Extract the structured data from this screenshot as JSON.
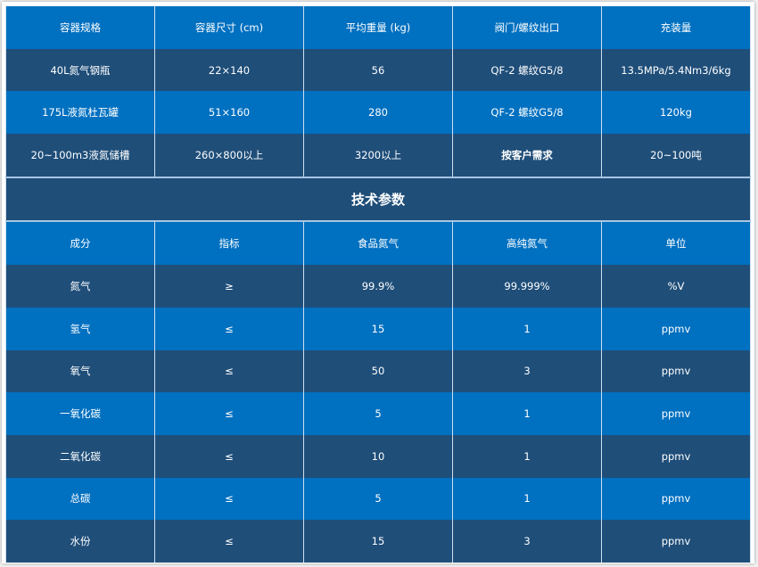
{
  "colors": {
    "row_blue": "#0070c0",
    "row_navy": "#1f4e79",
    "text": "#ffffff"
  },
  "containers": {
    "headers": [
      "容器规格",
      "容器尺寸 (cm)",
      "平均重量 (kg)",
      "阀门/螺纹出口",
      "充装量"
    ],
    "rows": [
      [
        "40L氮气钢瓶",
        "22×140",
        "56",
        "QF-2 螺纹G5/8",
        "13.5MPa/5.4Nm3/6kg"
      ],
      [
        "175L液氮杜瓦罐",
        "51×160",
        "280",
        "QF-2 螺纹G5/8",
        "120kg"
      ],
      [
        "20~100m3液氮储槽",
        "260×800以上",
        "3200以上",
        "按客户需求",
        "20~100吨"
      ]
    ]
  },
  "tech": {
    "title": "技术参数",
    "headers": [
      "成分",
      "指标",
      "食品氮气",
      "高纯氮气",
      "单位"
    ],
    "rows": [
      [
        "氮气",
        "≥",
        "99.9%",
        "99.999%",
        "%V"
      ],
      [
        "氢气",
        "≤",
        "15",
        "1",
        "ppmv"
      ],
      [
        "氧气",
        "≤",
        "50",
        "3",
        "ppmv"
      ],
      [
        "一氧化碳",
        "≤",
        "5",
        "1",
        "ppmv"
      ],
      [
        "二氧化碳",
        "≤",
        "10",
        "1",
        "ppmv"
      ],
      [
        "总碳",
        "≤",
        "5",
        "1",
        "ppmv"
      ],
      [
        "水份",
        "≤",
        "15",
        "3",
        "ppmv"
      ]
    ]
  }
}
